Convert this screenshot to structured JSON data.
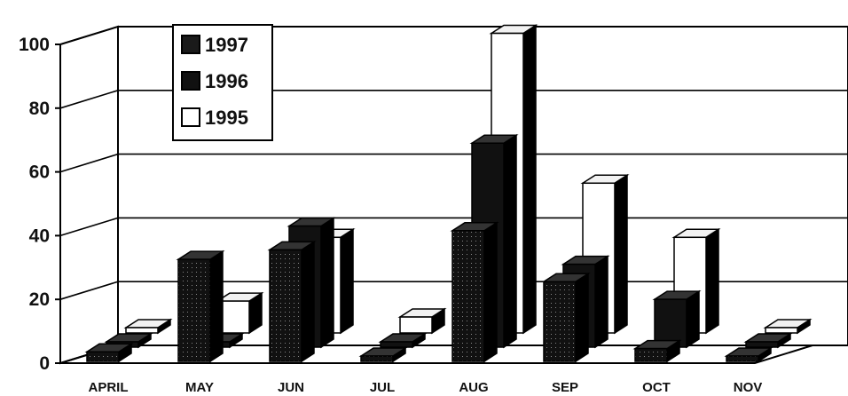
{
  "chart_data": {
    "type": "bar",
    "title": "",
    "xlabel": "",
    "ylabel": "",
    "categories": [
      "APRIL",
      "MAY",
      "JUN",
      "JUL",
      "AUG",
      "SEP",
      "OCT",
      "NOV"
    ],
    "series": [
      {
        "name": "1997",
        "values": [
          3,
          32,
          35,
          1,
          41,
          25,
          4,
          0
        ],
        "color": "#1a1a1a"
      },
      {
        "name": "1996",
        "values": [
          0,
          0,
          38,
          1,
          64,
          26,
          15,
          0
        ],
        "color": "#111111"
      },
      {
        "name": "1995",
        "values": [
          0,
          10,
          30,
          5,
          94,
          47,
          30,
          1
        ],
        "color": "#ffffff"
      }
    ],
    "ylim": [
      0,
      100
    ],
    "yticks": [
      0,
      20,
      40,
      60,
      80,
      100
    ],
    "grid": true,
    "legend": "top-left",
    "projection": "3d"
  }
}
